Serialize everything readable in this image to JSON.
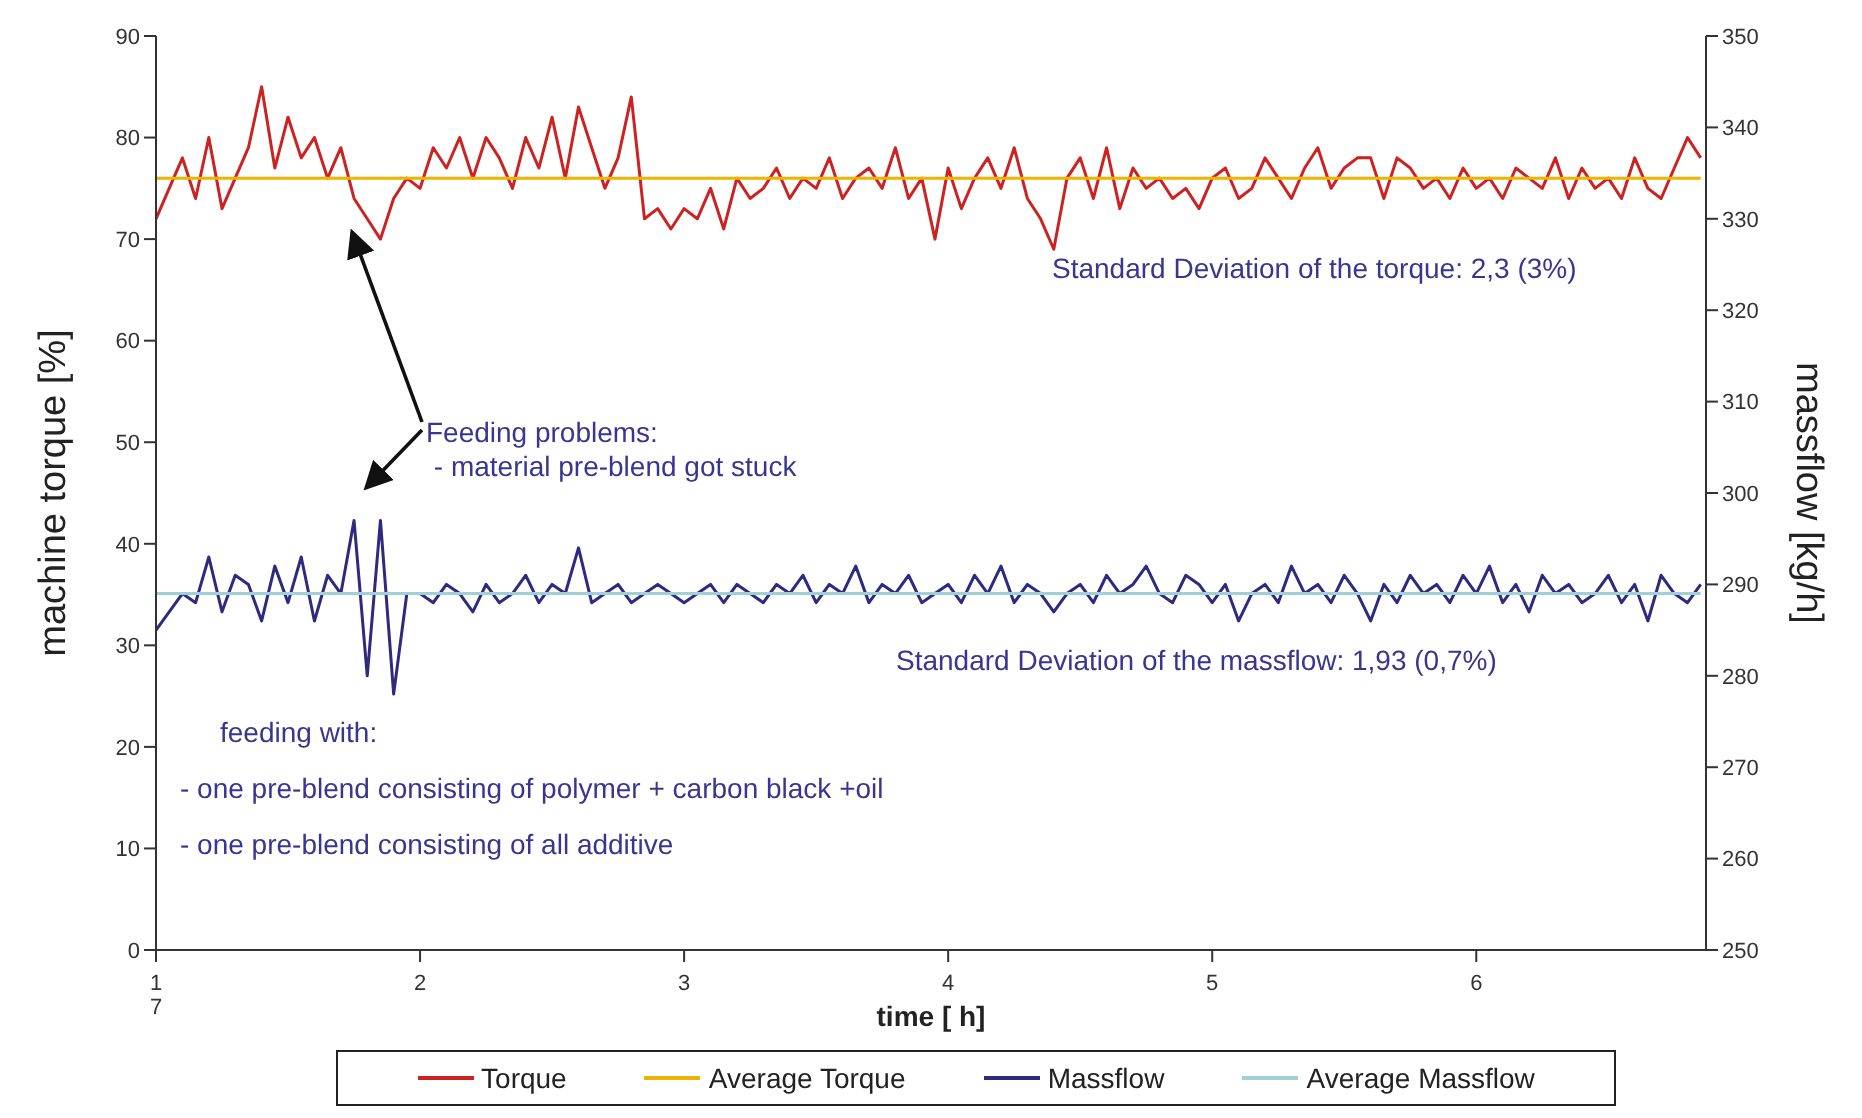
{
  "chart_data": {
    "type": "line",
    "xlabel": "time [ h]",
    "ylabel": "machine torque [%]",
    "y2label": "massflow [kg/h]",
    "x": [
      1.0,
      1.05,
      1.1,
      1.15,
      1.2,
      1.25,
      1.3,
      1.35,
      1.4,
      1.45,
      1.5,
      1.55,
      1.6,
      1.65,
      1.7,
      1.75,
      1.8,
      1.85,
      1.9,
      1.95,
      2.0,
      2.05,
      2.1,
      2.15,
      2.2,
      2.25,
      2.3,
      2.35,
      2.4,
      2.45,
      2.5,
      2.55,
      2.6,
      2.65,
      2.7,
      2.75,
      2.8,
      2.85,
      2.9,
      2.95,
      3.0,
      3.05,
      3.1,
      3.15,
      3.2,
      3.25,
      3.3,
      3.35,
      3.4,
      3.45,
      3.5,
      3.55,
      3.6,
      3.65,
      3.7,
      3.75,
      3.8,
      3.85,
      3.9,
      3.95,
      4.0,
      4.05,
      4.1,
      4.15,
      4.2,
      4.25,
      4.3,
      4.35,
      4.4,
      4.45,
      4.5,
      4.55,
      4.6,
      4.65,
      4.7,
      4.75,
      4.8,
      4.85,
      4.9,
      4.95,
      5.0,
      5.05,
      5.1,
      5.15,
      5.2,
      5.25,
      5.3,
      5.35,
      5.4,
      5.45,
      5.5,
      5.55,
      5.6,
      5.65,
      5.7,
      5.75,
      5.8,
      5.85,
      5.9,
      5.95,
      6.0,
      6.05,
      6.1,
      6.15,
      6.2,
      6.25,
      6.3,
      6.35,
      6.4,
      6.45,
      6.5,
      6.55,
      6.6,
      6.65,
      6.7,
      6.75,
      6.8,
      6.85
    ],
    "series": [
      {
        "name": "Torque",
        "color": "#cc2222",
        "values": [
          72,
          75,
          78,
          74,
          80,
          73,
          76,
          79,
          85,
          77,
          82,
          78,
          80,
          76,
          79,
          74,
          72,
          70,
          74,
          76,
          75,
          79,
          77,
          80,
          76,
          80,
          78,
          75,
          80,
          77,
          82,
          76,
          83,
          79,
          75,
          78,
          84,
          72,
          73,
          71,
          73,
          72,
          75,
          71,
          76,
          74,
          75,
          77,
          74,
          76,
          75,
          78,
          74,
          76,
          77,
          75,
          79,
          74,
          76,
          70,
          77,
          73,
          76,
          78,
          75,
          79,
          74,
          72,
          69,
          76,
          78,
          74,
          79,
          73,
          77,
          75,
          76,
          74,
          75,
          73,
          76,
          77,
          74,
          75,
          78,
          76,
          74,
          77,
          79,
          75,
          77,
          78,
          78,
          74,
          78,
          77,
          75,
          76,
          74,
          77,
          75,
          76,
          74,
          77,
          76,
          75,
          78,
          74,
          77,
          75,
          76,
          74,
          78,
          75,
          74,
          77,
          80,
          78
        ]
      },
      {
        "name": "Average Torque",
        "color": "#f0b400",
        "values": [
          76,
          76,
          76,
          76,
          76,
          76,
          76,
          76,
          76,
          76,
          76,
          76,
          76,
          76,
          76,
          76,
          76,
          76,
          76,
          76,
          76,
          76,
          76,
          76,
          76,
          76,
          76,
          76,
          76,
          76,
          76,
          76,
          76,
          76,
          76,
          76,
          76,
          76,
          76,
          76,
          76,
          76,
          76,
          76,
          76,
          76,
          76,
          76,
          76,
          76,
          76,
          76,
          76,
          76,
          76,
          76,
          76,
          76,
          76,
          76,
          76,
          76,
          76,
          76,
          76,
          76,
          76,
          76,
          76,
          76,
          76,
          76,
          76,
          76,
          76,
          76,
          76,
          76,
          76,
          76,
          76,
          76,
          76,
          76,
          76,
          76,
          76,
          76,
          76,
          76,
          76,
          76,
          76,
          76,
          76,
          76,
          76,
          76,
          76,
          76,
          76,
          76,
          76,
          76,
          76,
          76,
          76,
          76,
          76,
          76,
          76,
          76,
          76,
          76,
          76,
          76,
          76,
          76
        ]
      },
      {
        "name": "Massflow",
        "color": "#2e2a80",
        "axis": "y2",
        "values": [
          285,
          287,
          289,
          288,
          293,
          287,
          291,
          290,
          286,
          292,
          288,
          293,
          286,
          291,
          289,
          297,
          280,
          297,
          278,
          289,
          289,
          288,
          290,
          289,
          287,
          290,
          288,
          289,
          291,
          288,
          290,
          289,
          294,
          288,
          289,
          290,
          288,
          289,
          290,
          289,
          288,
          289,
          290,
          288,
          290,
          289,
          288,
          290,
          289,
          291,
          288,
          290,
          289,
          292,
          288,
          290,
          289,
          291,
          288,
          289,
          290,
          288,
          291,
          289,
          292,
          288,
          290,
          289,
          287,
          289,
          290,
          288,
          291,
          289,
          290,
          292,
          289,
          288,
          291,
          290,
          288,
          290,
          286,
          289,
          290,
          288,
          292,
          289,
          290,
          288,
          291,
          289,
          286,
          290,
          288,
          291,
          289,
          290,
          288,
          291,
          289,
          292,
          288,
          290,
          287,
          291,
          289,
          290,
          288,
          289,
          291,
          288,
          290,
          286,
          291,
          289,
          288,
          290
        ]
      },
      {
        "name": "Average Massflow",
        "color": "#9fd0d8",
        "axis": "y2",
        "values": [
          289,
          289,
          289,
          289,
          289,
          289,
          289,
          289,
          289,
          289,
          289,
          289,
          289,
          289,
          289,
          289,
          289,
          289,
          289,
          289,
          289,
          289,
          289,
          289,
          289,
          289,
          289,
          289,
          289,
          289,
          289,
          289,
          289,
          289,
          289,
          289,
          289,
          289,
          289,
          289,
          289,
          289,
          289,
          289,
          289,
          289,
          289,
          289,
          289,
          289,
          289,
          289,
          289,
          289,
          289,
          289,
          289,
          289,
          289,
          289,
          289,
          289,
          289,
          289,
          289,
          289,
          289,
          289,
          289,
          289,
          289,
          289,
          289,
          289,
          289,
          289,
          289,
          289,
          289,
          289,
          289,
          289,
          289,
          289,
          289,
          289,
          289,
          289,
          289,
          289,
          289,
          289,
          289,
          289,
          289,
          289,
          289,
          289,
          289,
          289,
          289,
          289,
          289,
          289,
          289,
          289,
          289,
          289,
          289,
          289,
          289,
          289,
          289,
          289,
          289,
          289,
          289,
          289
        ]
      }
    ],
    "xlim": [
      1,
      6.87
    ],
    "xticks": [
      {
        "value": 1,
        "label": "1\n7"
      },
      2,
      3,
      4,
      5,
      6
    ],
    "ylim": [
      0,
      90
    ],
    "yticks": [
      0,
      10,
      20,
      30,
      40,
      50,
      60,
      70,
      80,
      90
    ],
    "y2lim": [
      250,
      350
    ],
    "y2ticks": [
      250,
      260,
      270,
      280,
      290,
      300,
      310,
      320,
      330,
      340,
      350
    ],
    "annotations": [
      "Feeding problems:\n - material pre-blend got stuck",
      "Standard Deviation of the torque: 2,3 (3%)",
      "Standard Deviation of the massflow: 1,93 (0,7%)",
      "feeding with:",
      "- one pre-blend consisting of polymer + carbon black +oil",
      "- one pre-blend consisting of all additive"
    ],
    "grid": false,
    "legend": "bottom",
    "marker": "none",
    "line_style": "solid"
  }
}
